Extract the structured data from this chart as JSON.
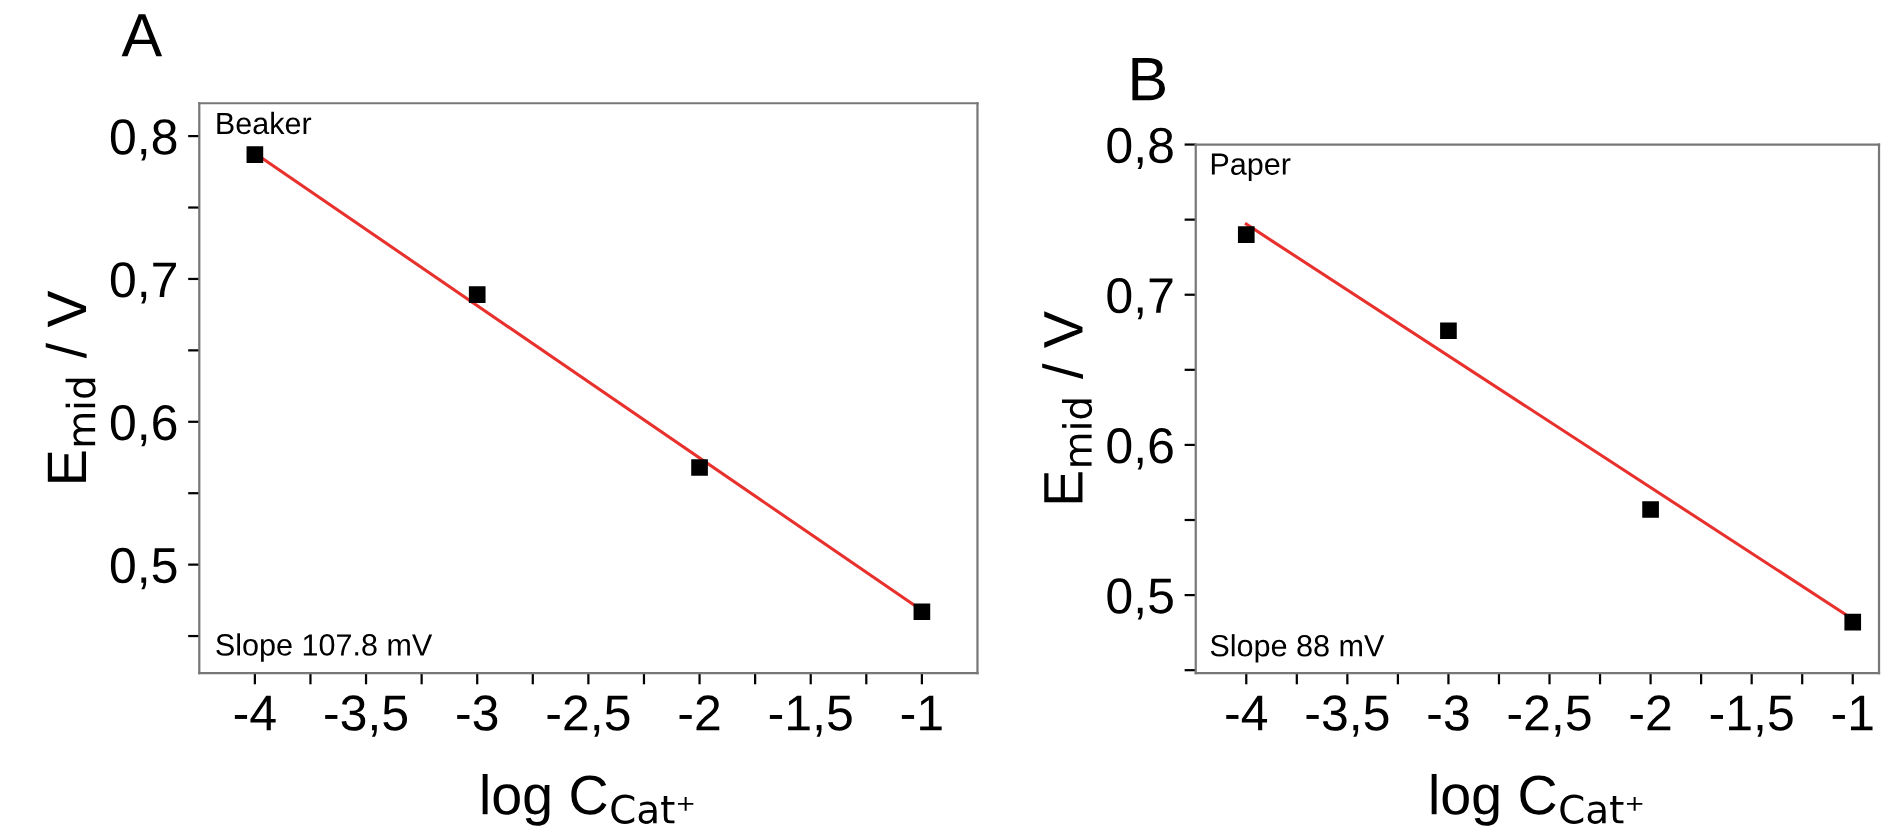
{
  "chart_data": [
    {
      "type": "scatter",
      "xlabel": "log C$_{Cat⁺}$",
      "ylabel": "E$_{mid}$ / V",
      "annotations": [
        "A",
        "Beaker",
        "Slope 107.8 mV"
      ],
      "xlim": [
        -4.25,
        -0.75
      ],
      "ylim": [
        0.424,
        0.823
      ],
      "xticks": [
        -4,
        {
          "value": -3.75,
          "label": null
        },
        {
          "value": -3.5,
          "label": "-3,5"
        },
        {
          "value": -3.25,
          "label": null
        },
        -3,
        {
          "value": -2.75,
          "label": null
        },
        {
          "value": -2.5,
          "label": "-2,5"
        },
        {
          "value": -2.25,
          "label": null
        },
        -2,
        {
          "value": -1.75,
          "label": null
        },
        {
          "value": -1.5,
          "label": "-1,5"
        },
        {
          "value": -1.25,
          "label": null
        },
        -1
      ],
      "yticks": [
        {
          "value": 0.45,
          "label": null
        },
        {
          "value": 0.5,
          "label": "0,5"
        },
        {
          "value": 0.55,
          "label": null
        },
        {
          "value": 0.6,
          "label": "0,6"
        },
        {
          "value": 0.65,
          "label": null
        },
        {
          "value": 0.7,
          "label": "0,7"
        },
        {
          "value": 0.75,
          "label": null
        },
        {
          "value": 0.8,
          "label": "0,8"
        }
      ],
      "series": [
        {
          "color": "#000000",
          "marker": "square",
          "x": [
            -4,
            -3,
            -2,
            -1
          ],
          "values": [
            0.787,
            0.689,
            0.568,
            0.467
          ]
        },
        {
          "type": "line",
          "marker": "none",
          "color": "#e8302c",
          "x": [
            -4,
            -1
          ],
          "values": [
            0.788,
            0.468
          ]
        }
      ]
    },
    {
      "type": "scatter",
      "xlabel": "log C$_{Cat⁺}$",
      "ylabel": "E$_{mid}$ / V",
      "annotations": [
        "B",
        "Paper",
        "Slope 88 mV"
      ],
      "xlim": [
        -4.25,
        -0.87
      ],
      "ylim": [
        0.448,
        0.8
      ],
      "xticks": [
        -4,
        {
          "value": -3.75,
          "label": null
        },
        {
          "value": -3.5,
          "label": "-3,5"
        },
        {
          "value": -3.25,
          "label": null
        },
        -3,
        {
          "value": -2.75,
          "label": null
        },
        {
          "value": -2.5,
          "label": "-2,5"
        },
        {
          "value": -2.25,
          "label": null
        },
        -2,
        {
          "value": -1.75,
          "label": null
        },
        {
          "value": -1.5,
          "label": "-1,5"
        },
        {
          "value": -1.25,
          "label": null
        },
        -1
      ],
      "yticks": [
        {
          "value": 0.45,
          "label": null
        },
        {
          "value": 0.5,
          "label": "0,5"
        },
        {
          "value": 0.55,
          "label": null
        },
        {
          "value": 0.6,
          "label": "0,6"
        },
        {
          "value": 0.65,
          "label": null
        },
        {
          "value": 0.7,
          "label": "0,7"
        },
        {
          "value": 0.75,
          "label": null
        },
        {
          "value": 0.8,
          "label": "0,8"
        }
      ],
      "series": [
        {
          "color": "#000000",
          "marker": "square",
          "x": [
            -4,
            -3,
            -2,
            -1
          ],
          "values": [
            0.74,
            0.676,
            0.557,
            0.482
          ]
        },
        {
          "type": "line",
          "marker": "none",
          "color": "#e8302c",
          "x": [
            -4,
            -1
          ],
          "values": [
            0.747,
            0.484
          ]
        }
      ]
    }
  ]
}
